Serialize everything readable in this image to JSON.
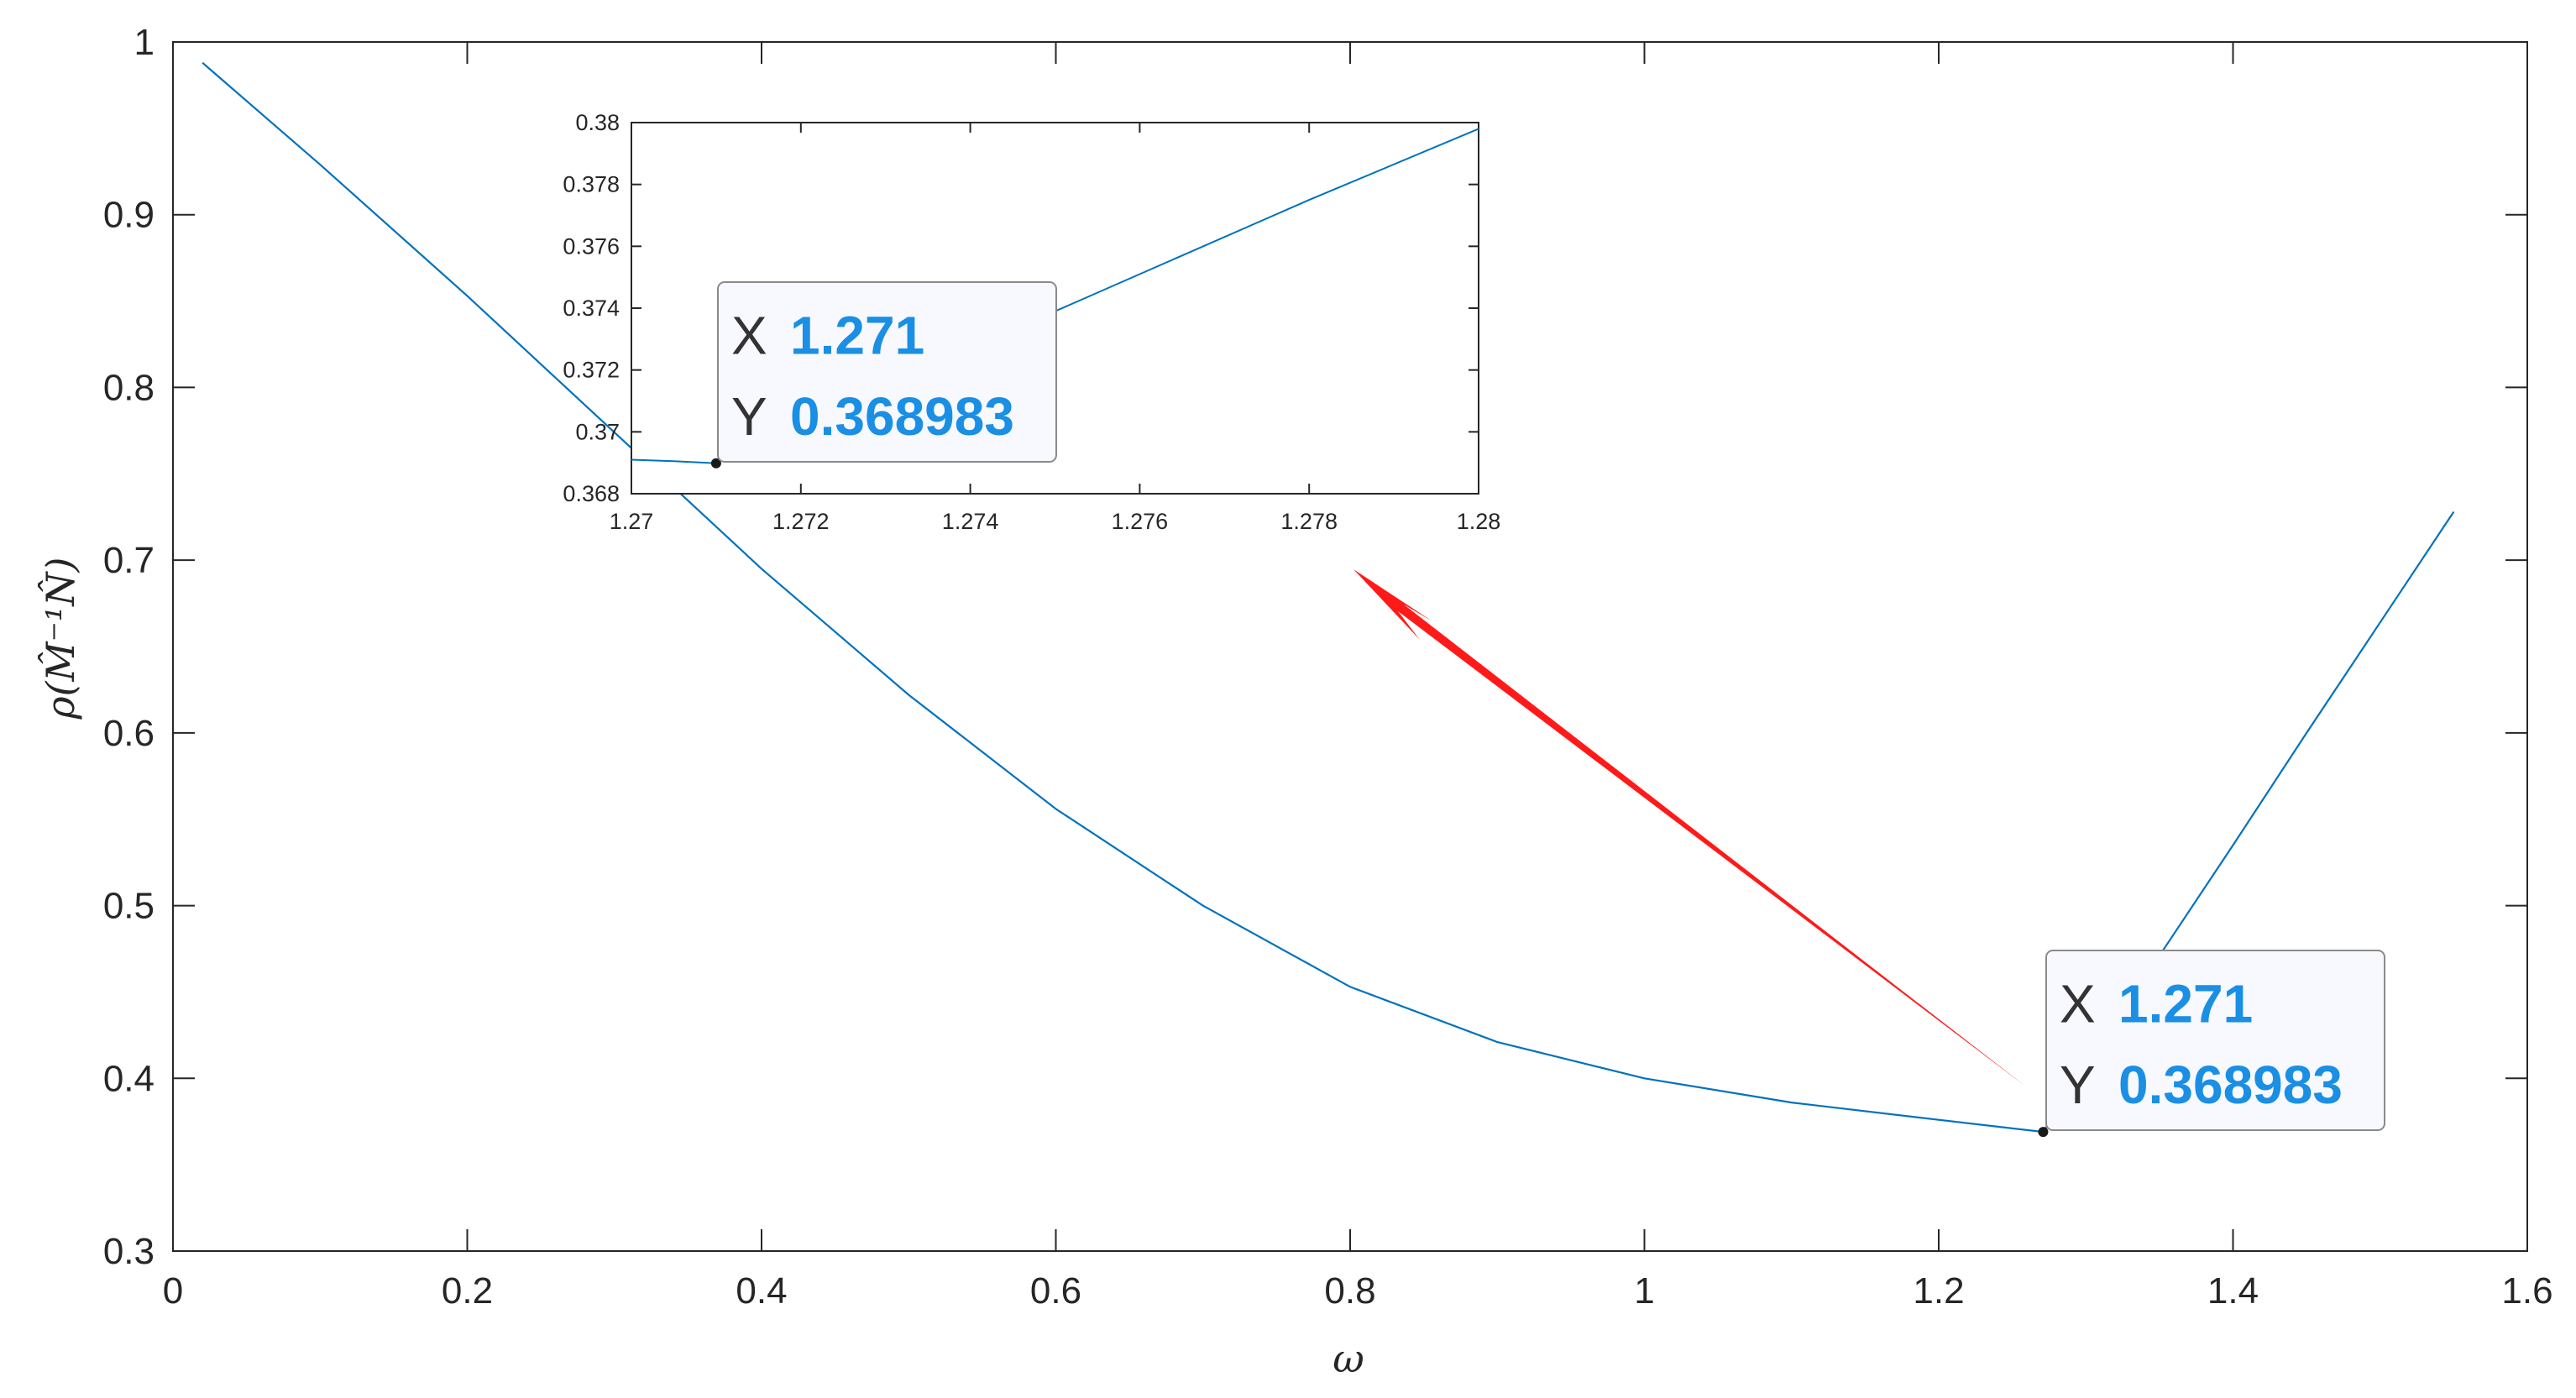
{
  "colors": {
    "series": "#0072BD",
    "datatip_value": "#1A8FE3",
    "arrow": "#FF1A1A",
    "axis": "#262626"
  },
  "chart_data": [
    {
      "type": "line",
      "title": "",
      "xlabel": "ω",
      "ylabel": "ρ(M̂⁻¹N̂)",
      "xlim": [
        0,
        1.6
      ],
      "ylim": [
        0.3,
        1
      ],
      "xticks": [
        0,
        0.2,
        0.4,
        0.6,
        0.8,
        1,
        1.2,
        1.4,
        1.6
      ],
      "xtick_labels": [
        "0",
        "0.2",
        "0.4",
        "0.6",
        "0.8",
        "1",
        "1.2",
        "1.4",
        "1.6"
      ],
      "yticks": [
        0.3,
        0.4,
        0.5,
        0.6,
        0.7,
        0.8,
        0.9,
        1
      ],
      "ytick_labels": [
        "0.3",
        "0.4",
        "0.5",
        "0.6",
        "0.7",
        "0.8",
        "0.9",
        "1"
      ],
      "grid": false,
      "series": [
        {
          "x": [
            0.02,
            0.1,
            0.2,
            0.3,
            0.4,
            0.5,
            0.6,
            0.7,
            0.8,
            0.9,
            1.0,
            1.1,
            1.2,
            1.271,
            1.3,
            1.35,
            1.4,
            1.45,
            1.5,
            1.55
          ],
          "y": [
            0.988,
            0.929,
            0.853,
            0.774,
            0.695,
            0.622,
            0.556,
            0.5,
            0.453,
            0.421,
            0.4,
            0.386,
            0.376,
            0.369,
            0.407,
            0.471,
            0.535,
            0.6,
            0.664,
            0.728
          ]
        }
      ],
      "datatip": {
        "x": 1.271,
        "y": 0.368983,
        "x_key": "X",
        "y_key": "Y",
        "x_text": "1.271",
        "y_text": "0.368983"
      }
    },
    {
      "type": "line",
      "title": "",
      "xlim": [
        1.27,
        1.28
      ],
      "ylim": [
        0.368,
        0.38
      ],
      "xticks": [
        1.27,
        1.272,
        1.274,
        1.276,
        1.278,
        1.28
      ],
      "xtick_labels": [
        "1.27",
        "1.272",
        "1.274",
        "1.276",
        "1.278",
        "1.28"
      ],
      "yticks": [
        0.368,
        0.37,
        0.372,
        0.374,
        0.376,
        0.378,
        0.38
      ],
      "ytick_labels": [
        "0.368",
        "0.37",
        "0.372",
        "0.374",
        "0.376",
        "0.378",
        "0.38"
      ],
      "series": [
        {
          "x": [
            1.27,
            1.2705,
            1.271,
            1.272,
            1.274,
            1.276,
            1.278,
            1.28
          ],
          "y": [
            0.3691,
            0.36905,
            0.368983,
            0.3703,
            0.3727,
            0.3751,
            0.3775,
            0.3798
          ]
        }
      ],
      "datatip": {
        "x": 1.271,
        "y": 0.368983,
        "x_key": "X",
        "y_key": "Y",
        "x_text": "1.271",
        "y_text": "0.368983"
      }
    }
  ]
}
